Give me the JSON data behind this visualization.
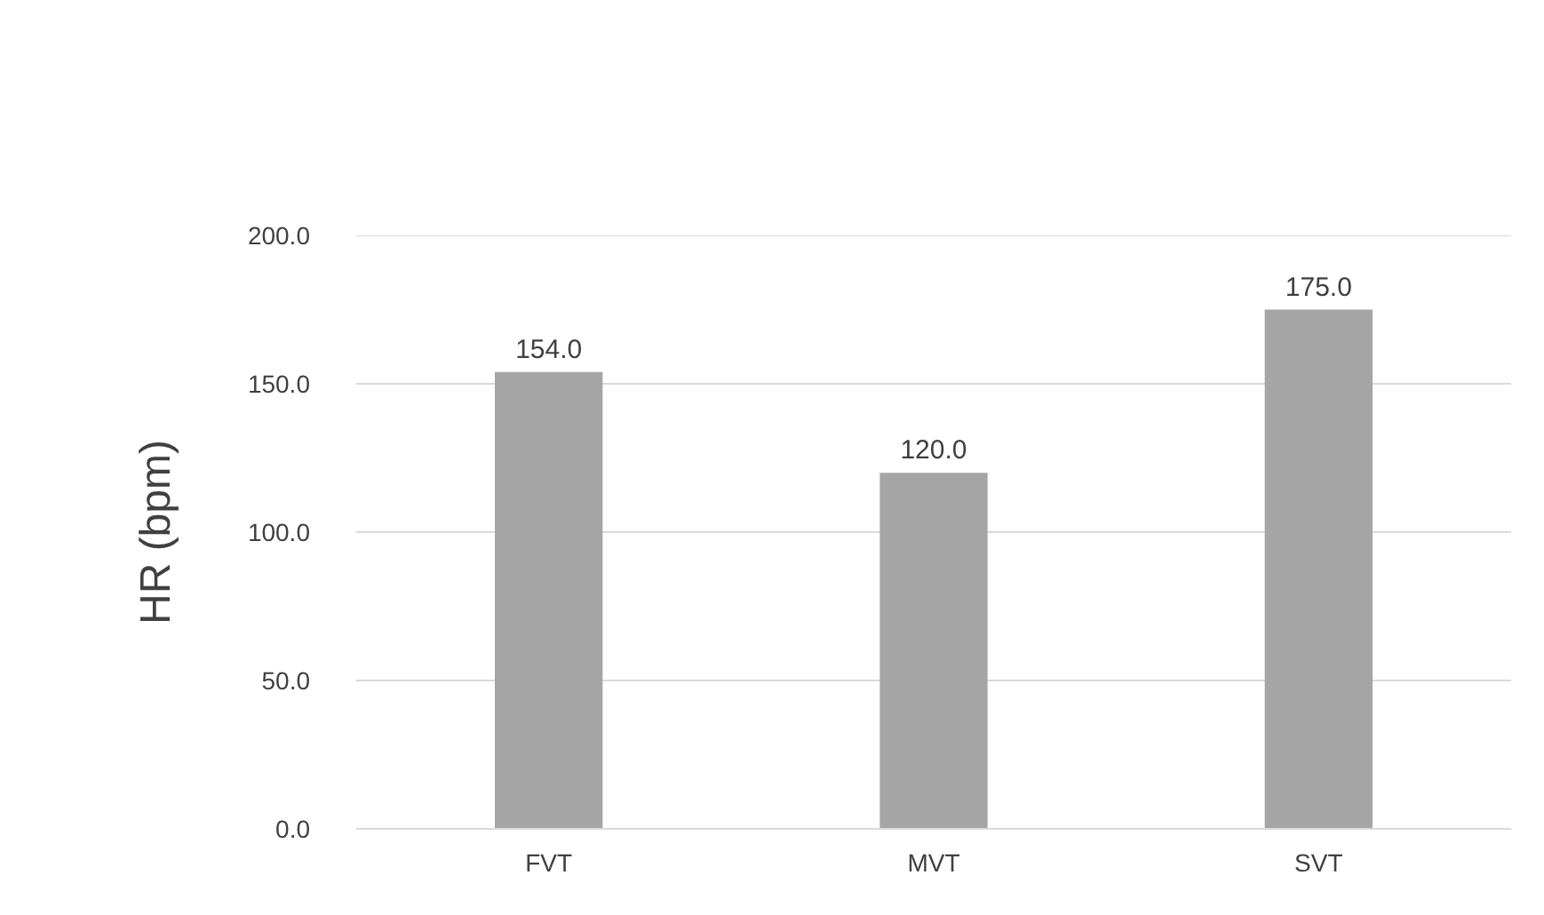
{
  "chart_data": {
    "type": "bar",
    "ylabel": "HR (bpm)",
    "categories": [
      "FVT",
      "MVT",
      "SVT"
    ],
    "values": [
      154.0,
      120.0,
      175.0
    ],
    "value_labels": [
      "154.0",
      "120.0",
      "175.0"
    ],
    "color": "#a5a5a5",
    "ylim": [
      0,
      200
    ],
    "yticks": [
      {
        "value": 0,
        "label": "0.0"
      },
      {
        "value": 50,
        "label": "50.0"
      },
      {
        "value": 100,
        "label": "100.0"
      },
      {
        "value": 150,
        "label": "150.0"
      },
      {
        "value": 200,
        "label": "200.0"
      }
    ],
    "grid": "y"
  }
}
